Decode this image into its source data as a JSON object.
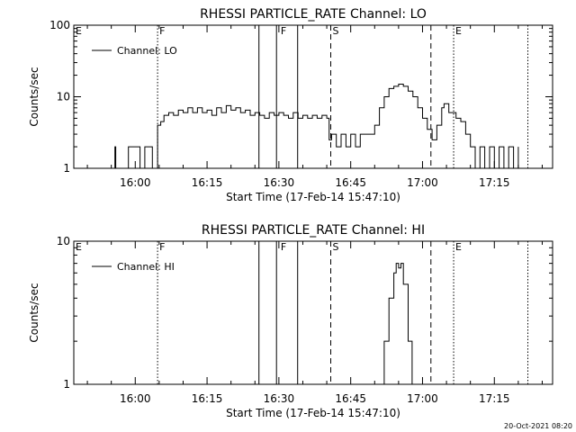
{
  "chart_data": [
    {
      "type": "line",
      "title": "RHESSI PARTICLE_RATE Channel: LO",
      "xlabel": "Start Time (17-Feb-14 15:47:10)",
      "ylabel": "Counts/sec",
      "yscale": "log",
      "xlim": [
        "15:47:10",
        "17:27:10"
      ],
      "ylim": [
        1,
        100
      ],
      "x_ticks": [
        "16:00",
        "16:15",
        "16:30",
        "16:45",
        "17:00",
        "17:15"
      ],
      "y_ticks": [
        "1",
        "10",
        "100"
      ],
      "legend": {
        "label": "Channel: LO",
        "placement": "top-left"
      },
      "flags": [
        {
          "label": "E",
          "time": "15:47:10"
        },
        {
          "label": "F",
          "time": "16:04:40"
        },
        {
          "label": "F",
          "time": "16:30:00"
        },
        {
          "label": "S",
          "time": "16:40:50"
        },
        {
          "label": "E",
          "time": "17:06:30"
        }
      ],
      "markers": [
        {
          "time": "16:04:40",
          "style": "dotted"
        },
        {
          "time": "16:25:50",
          "style": "solid"
        },
        {
          "time": "16:29:30",
          "style": "solid"
        },
        {
          "time": "16:33:55",
          "style": "solid"
        },
        {
          "time": "16:40:50",
          "style": "dashed"
        },
        {
          "time": "17:01:45",
          "style": "dashed"
        },
        {
          "time": "17:06:30",
          "style": "dotted"
        },
        {
          "time": "17:22:00",
          "style": "dotted"
        }
      ],
      "series": [
        {
          "name": "Channel: LO",
          "points": [
            [
              "15:55:40",
              1
            ],
            [
              "15:55:45",
              2
            ],
            [
              "15:55:55",
              1
            ],
            [
              "15:58:30",
              1
            ],
            [
              "15:58:35",
              2
            ],
            [
              "16:00:40",
              2
            ],
            [
              "16:01:00",
              1
            ],
            [
              "16:01:50",
              1
            ],
            [
              "16:02:00",
              2
            ],
            [
              "16:03:20",
              2
            ],
            [
              "16:03:35",
              1
            ],
            [
              "16:04:30",
              1
            ],
            [
              "16:04:40",
              4
            ],
            [
              "16:05:20",
              4.5
            ],
            [
              "16:06:00",
              5.5
            ],
            [
              "16:07:00",
              6
            ],
            [
              "16:08:00",
              5.5
            ],
            [
              "16:09:00",
              6.5
            ],
            [
              "16:10:00",
              6
            ],
            [
              "16:11:00",
              7
            ],
            [
              "16:12:00",
              6
            ],
            [
              "16:13:00",
              7
            ],
            [
              "16:14:00",
              6
            ],
            [
              "16:15:00",
              6.5
            ],
            [
              "16:16:00",
              5.5
            ],
            [
              "16:17:00",
              7
            ],
            [
              "16:18:00",
              6
            ],
            [
              "16:19:00",
              7.5
            ],
            [
              "16:20:00",
              6.5
            ],
            [
              "16:21:00",
              7
            ],
            [
              "16:22:00",
              6
            ],
            [
              "16:23:00",
              6.5
            ],
            [
              "16:24:00",
              5.5
            ],
            [
              "16:25:00",
              6
            ],
            [
              "16:26:00",
              5.5
            ],
            [
              "16:27:00",
              5
            ],
            [
              "16:28:00",
              6
            ],
            [
              "16:29:00",
              5.5
            ],
            [
              "16:30:00",
              6
            ],
            [
              "16:31:00",
              5.5
            ],
            [
              "16:32:00",
              5
            ],
            [
              "16:33:00",
              6
            ],
            [
              "16:34:00",
              5
            ],
            [
              "16:35:00",
              5.5
            ],
            [
              "16:36:00",
              5
            ],
            [
              "16:37:00",
              5.5
            ],
            [
              "16:38:00",
              5
            ],
            [
              "16:39:00",
              5.5
            ],
            [
              "16:40:00",
              5
            ],
            [
              "16:40:30",
              2.5
            ],
            [
              "16:41:00",
              3
            ],
            [
              "16:42:00",
              2
            ],
            [
              "16:43:00",
              3
            ],
            [
              "16:44:00",
              2
            ],
            [
              "16:45:00",
              3
            ],
            [
              "16:46:00",
              2
            ],
            [
              "16:47:00",
              3
            ],
            [
              "16:48:00",
              3
            ],
            [
              "16:49:00",
              3
            ],
            [
              "16:50:00",
              4
            ],
            [
              "16:51:00",
              7
            ],
            [
              "16:52:00",
              10
            ],
            [
              "16:53:00",
              13
            ],
            [
              "16:54:00",
              14
            ],
            [
              "16:55:00",
              15
            ],
            [
              "16:56:00",
              14
            ],
            [
              "16:57:00",
              12
            ],
            [
              "16:58:00",
              10
            ],
            [
              "16:59:00",
              7
            ],
            [
              "17:00:00",
              5
            ],
            [
              "17:01:00",
              3.5
            ],
            [
              "17:02:00",
              2.5
            ],
            [
              "17:03:00",
              4
            ],
            [
              "17:04:00",
              7
            ],
            [
              "17:04:30",
              8
            ],
            [
              "17:05:30",
              6
            ],
            [
              "17:07:00",
              5
            ],
            [
              "17:08:00",
              4.5
            ],
            [
              "17:09:00",
              3
            ],
            [
              "17:10:00",
              2
            ],
            [
              "17:11:00",
              1
            ],
            [
              "17:12:00",
              2
            ],
            [
              "17:13:00",
              1
            ],
            [
              "17:14:00",
              2
            ],
            [
              "17:15:00",
              1
            ],
            [
              "17:16:00",
              2
            ],
            [
              "17:17:00",
              1
            ],
            [
              "17:18:00",
              2
            ],
            [
              "17:19:00",
              1
            ],
            [
              "17:20:00",
              2
            ]
          ]
        }
      ]
    },
    {
      "type": "line",
      "title": "RHESSI PARTICLE_RATE Channel: HI",
      "xlabel": "Start Time (17-Feb-14 15:47:10)",
      "ylabel": "Counts/sec",
      "yscale": "log",
      "xlim": [
        "15:47:10",
        "17:27:10"
      ],
      "ylim": [
        1,
        10
      ],
      "x_ticks": [
        "16:00",
        "16:15",
        "16:30",
        "16:45",
        "17:00",
        "17:15"
      ],
      "y_ticks": [
        "1",
        "10"
      ],
      "legend": {
        "label": "Channel: HI",
        "placement": "top-left"
      },
      "flags": [
        {
          "label": "E",
          "time": "15:47:10"
        },
        {
          "label": "F",
          "time": "16:04:40"
        },
        {
          "label": "F",
          "time": "16:30:00"
        },
        {
          "label": "S",
          "time": "16:40:50"
        },
        {
          "label": "E",
          "time": "17:06:30"
        }
      ],
      "markers": [
        {
          "time": "16:04:40",
          "style": "dotted"
        },
        {
          "time": "16:25:50",
          "style": "solid"
        },
        {
          "time": "16:29:30",
          "style": "solid"
        },
        {
          "time": "16:33:55",
          "style": "solid"
        },
        {
          "time": "16:40:50",
          "style": "dashed"
        },
        {
          "time": "17:01:45",
          "style": "dashed"
        },
        {
          "time": "17:06:30",
          "style": "dotted"
        },
        {
          "time": "17:22:00",
          "style": "dotted"
        }
      ],
      "series": [
        {
          "name": "Channel: HI",
          "points": [
            [
              "16:51:00",
              1
            ],
            [
              "16:52:00",
              2
            ],
            [
              "16:53:00",
              4
            ],
            [
              "16:54:00",
              6
            ],
            [
              "16:54:30",
              7
            ],
            [
              "16:55:00",
              6.5
            ],
            [
              "16:55:30",
              7
            ],
            [
              "16:56:00",
              5
            ],
            [
              "16:57:00",
              2
            ],
            [
              "16:57:50",
              1
            ]
          ]
        }
      ]
    }
  ],
  "footer": {
    "timestamp": "20-Oct-2021 08:20"
  }
}
